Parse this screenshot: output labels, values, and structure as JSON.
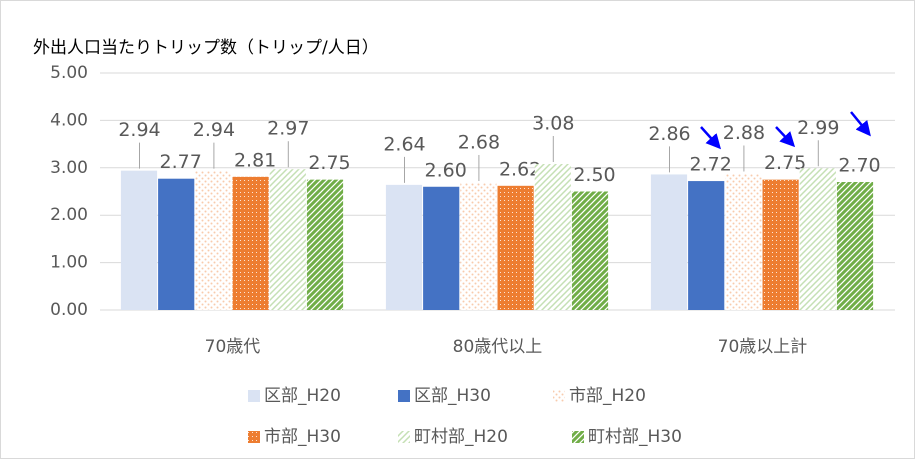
{
  "chart_data": {
    "type": "bar",
    "title": "外出人口当たりトリップ数（トリップ/人日）",
    "categories": [
      "70歳代",
      "80歳代以上",
      "70歳以上計"
    ],
    "series": [
      {
        "name": "区部_H20",
        "color": "#dae3f3",
        "pattern": "solid",
        "values": [
          2.94,
          2.64,
          2.86
        ],
        "value_labels": [
          "2.94",
          "2.64",
          "2.86"
        ]
      },
      {
        "name": "区部_H30",
        "color": "#4472c4",
        "pattern": "solid",
        "values": [
          2.77,
          2.6,
          2.72
        ],
        "value_labels": [
          "2.77",
          "2.60",
          "2.72"
        ]
      },
      {
        "name": "市部_H20",
        "color": "#f8cbad",
        "pattern": "dots",
        "values": [
          2.94,
          2.68,
          2.88
        ],
        "value_labels": [
          "2.94",
          "2.68",
          "2.88"
        ]
      },
      {
        "name": "市部_H30",
        "color": "#ed7d31",
        "pattern": "grid",
        "values": [
          2.81,
          2.62,
          2.75
        ],
        "value_labels": [
          "2.81",
          "2.62",
          "2.75"
        ]
      },
      {
        "name": "町村部_H20",
        "color": "#c5e0b4",
        "pattern": "diagonal",
        "values": [
          2.97,
          3.08,
          2.99
        ],
        "value_labels": [
          "2.97",
          "3.08",
          "2.99"
        ]
      },
      {
        "name": "町村部_H30",
        "color": "#70ad47",
        "pattern": "diagonal-dense",
        "values": [
          2.75,
          2.5,
          2.7
        ],
        "value_labels": [
          "2.75",
          "2.50",
          "2.70"
        ]
      }
    ],
    "ylim": [
      0,
      5
    ],
    "yticks": [
      {
        "value": 0,
        "label": "0.00"
      },
      {
        "value": 1,
        "label": "1.00"
      },
      {
        "value": 2,
        "label": "2.00"
      },
      {
        "value": 3,
        "label": "3.00"
      },
      {
        "value": 4,
        "label": "4.00"
      },
      {
        "value": 5,
        "label": "5.00"
      }
    ],
    "grid": true,
    "legend": "bottom"
  }
}
